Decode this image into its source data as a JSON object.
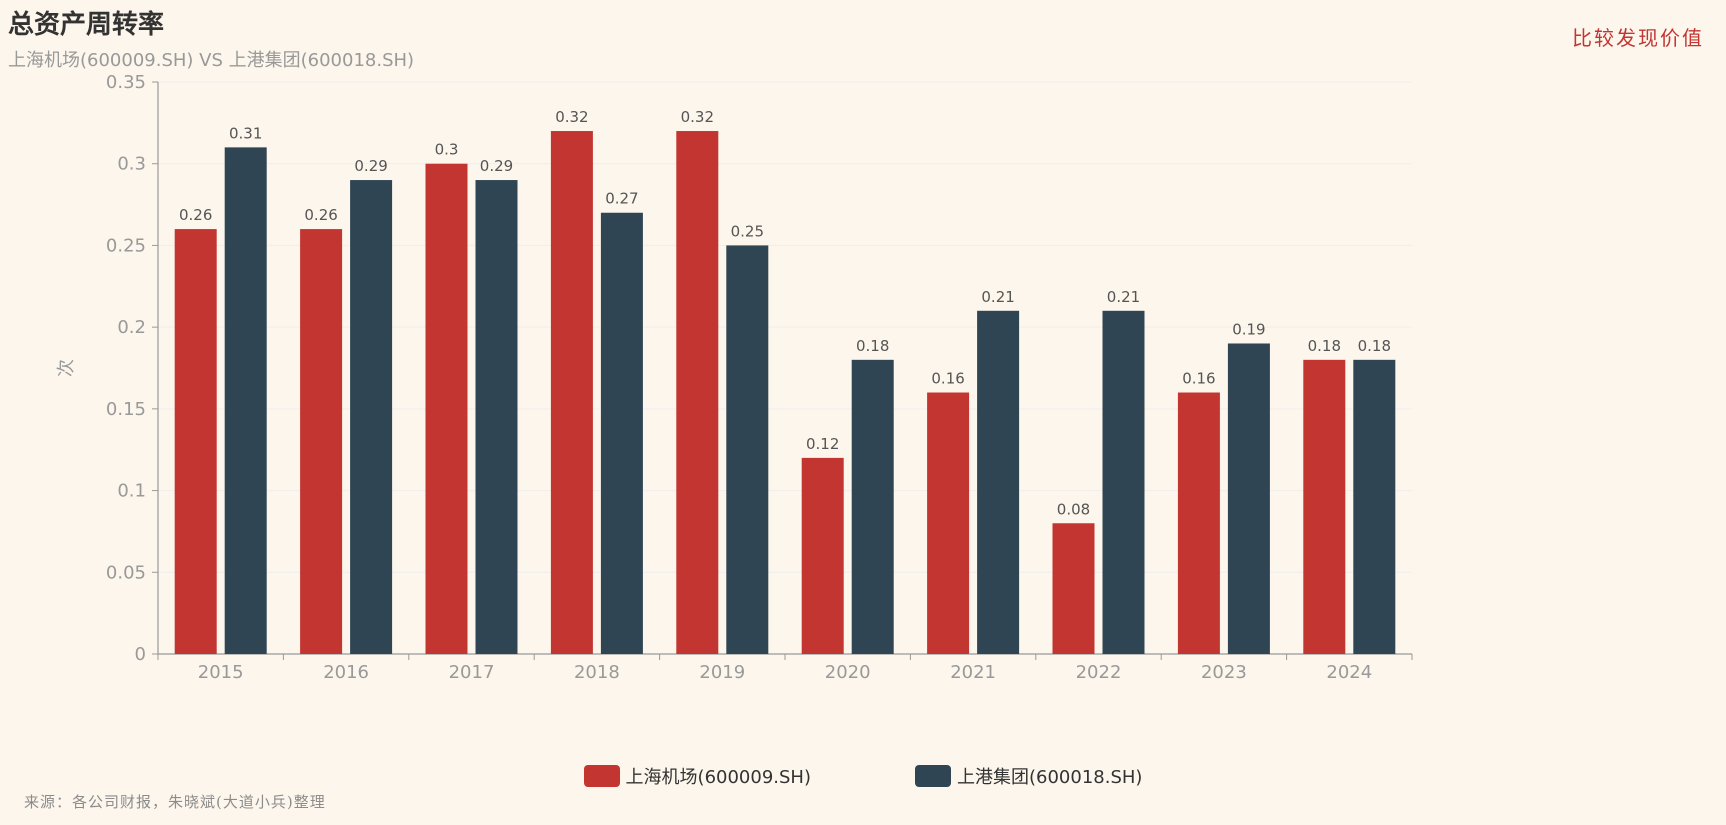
{
  "header": {
    "title": "总资产周转率",
    "subtitle": "上海机场(600009.SH) VS 上港集团(600018.SH)",
    "brand": "比较发现价值"
  },
  "footer": {
    "source": "来源：各公司财报，朱晓斌(大道小兵)整理"
  },
  "colors": {
    "background": "#fdf6ec",
    "series_0": "#c23531",
    "series_1": "#2f4554",
    "axis": "#999999",
    "grid": "#eeeeee"
  },
  "chart_data": {
    "type": "bar",
    "title": "总资产周转率",
    "subtitle": "上海机场(600009.SH) VS 上港集团(600018.SH)",
    "xlabel": "",
    "ylabel": "次",
    "ylim": [
      0,
      0.35
    ],
    "yticks": [
      0,
      0.05,
      0.1,
      0.15,
      0.2,
      0.25,
      0.3,
      0.35
    ],
    "ytick_labels": [
      "0",
      "0.05",
      "0.1",
      "0.15",
      "0.2",
      "0.25",
      "0.3",
      "0.35"
    ],
    "grid": true,
    "legend_position": "bottom-center",
    "categories": [
      "2015",
      "2016",
      "2017",
      "2018",
      "2019",
      "2020",
      "2021",
      "2022",
      "2023",
      "2024"
    ],
    "series": [
      {
        "name": "上海机场(600009.SH)",
        "values": [
          0.26,
          0.26,
          0.3,
          0.32,
          0.32,
          0.12,
          0.16,
          0.08,
          0.16,
          0.18
        ],
        "labels": [
          "0.26",
          "0.26",
          "0.3",
          "0.32",
          "0.32",
          "0.12",
          "0.16",
          "0.08",
          "0.16",
          "0.18"
        ],
        "color": "#c23531"
      },
      {
        "name": "上港集团(600018.SH)",
        "values": [
          0.31,
          0.29,
          0.29,
          0.27,
          0.25,
          0.18,
          0.21,
          0.21,
          0.19,
          0.18
        ],
        "labels": [
          "0.31",
          "0.29",
          "0.29",
          "0.27",
          "0.25",
          "0.18",
          "0.21",
          "0.21",
          "0.19",
          "0.18"
        ],
        "color": "#2f4554"
      }
    ]
  }
}
